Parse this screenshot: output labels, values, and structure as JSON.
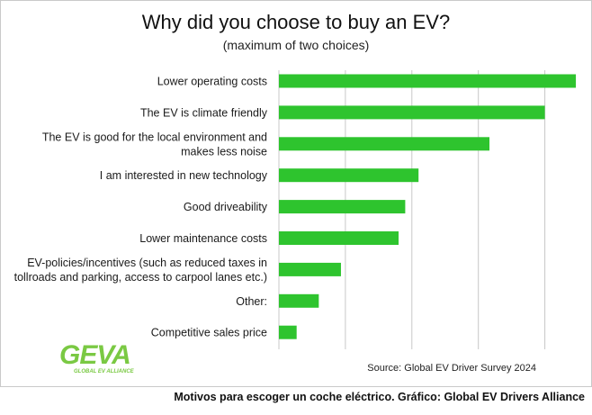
{
  "chart_data": {
    "type": "bar",
    "orientation": "horizontal",
    "title": "Why did you choose to buy an EV?",
    "subtitle": "(maximum of two choices)",
    "categories": [
      "Lower operating costs",
      "The EV is climate friendly",
      "The EV is good for the local environment and makes less noise",
      "I am interested in new technology",
      "Good driveability",
      "Lower maintenance costs",
      "EV-policies/incentives (such as reduced taxes in tollroads and parking, access to carpool lanes etc.)",
      "Other:",
      "Competitive sales price"
    ],
    "category_lines": [
      [
        "Lower operating costs"
      ],
      [
        "The EV is climate friendly"
      ],
      [
        "The EV is good for the local environment and",
        "makes less noise"
      ],
      [
        "I am interested in new technology"
      ],
      [
        "Good driveability"
      ],
      [
        "Lower maintenance costs"
      ],
      [
        "EV-policies/incentives (such as reduced taxes in",
        "tollroads and parking, access to carpool lanes etc.)"
      ],
      [
        "Other:"
      ],
      [
        "Competitive sales price"
      ]
    ],
    "values": [
      67,
      60,
      47.5,
      31.5,
      28.5,
      27,
      14,
      9,
      4
    ],
    "xlim": [
      0,
      68
    ],
    "grid": true,
    "gridlines": [
      15,
      30,
      45,
      60
    ],
    "bar_color": "#2ec42e",
    "grid_color": "#c8c8c8"
  },
  "source": "Source: Global EV Driver Survey 2024",
  "caption": "Motivos para escoger un coche eléctrico. Gráfico: Global EV Drivers Alliance",
  "logo": {
    "text": "GEVA",
    "subtext": "GLOBAL EV ALLIANCE",
    "color": "#7ac943"
  }
}
